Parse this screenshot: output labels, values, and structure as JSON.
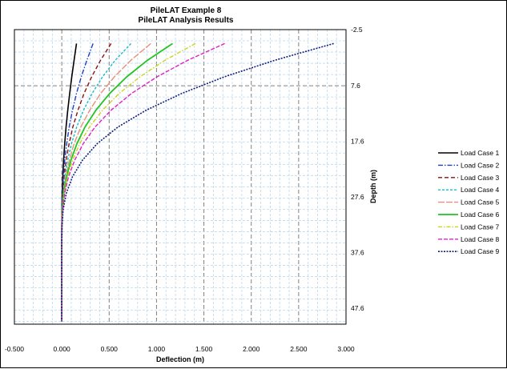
{
  "chart_data": {
    "type": "line",
    "title": "PileLAT Example 8",
    "subtitle": "PileLAT Analysis Results",
    "xlabel": "Deflection (m)",
    "ylabel": "Depth (m)",
    "xlim": [
      -0.5,
      3.0
    ],
    "ylim": [
      -2.5,
      50.5
    ],
    "y_inverted": true,
    "y_axis_side": "right",
    "x_ticks": [
      "-0.500",
      "0.000",
      "0.500",
      "1.000",
      "1.500",
      "2.000",
      "2.500",
      "3.000"
    ],
    "x_tick_values": [
      -0.5,
      0,
      0.5,
      1.0,
      1.5,
      2.0,
      2.5,
      3.0
    ],
    "y_ticks": [
      "-2.5",
      "7.6",
      "17.6",
      "27.6",
      "37.6",
      "47.6"
    ],
    "y_tick_values": [
      -2.5,
      7.6,
      17.6,
      27.6,
      37.6,
      47.6
    ],
    "grid": true,
    "legend_position": "right",
    "depth": [
      0,
      3,
      6,
      9,
      12,
      15,
      18,
      21,
      24,
      27,
      30,
      33,
      36,
      40,
      44,
      47,
      50
    ],
    "series": [
      {
        "name": "Load Case 1",
        "color": "#000000",
        "dash": "solid",
        "width": 1.6,
        "values": [
          0.155,
          0.13,
          0.105,
          0.083,
          0.063,
          0.045,
          0.031,
          0.019,
          0.01,
          0.004,
          0.001,
          0.0,
          0.0,
          0.0,
          0.0,
          0.0,
          0.0
        ]
      },
      {
        "name": "Load Case 2",
        "color": "#1f3fbf",
        "dash": "6 2 1.5 2",
        "width": 1.4,
        "values": [
          0.33,
          0.265,
          0.205,
          0.155,
          0.113,
          0.078,
          0.052,
          0.031,
          0.016,
          0.007,
          0.002,
          0.0,
          0.0,
          0.0,
          0.0,
          0.0,
          0.0
        ]
      },
      {
        "name": "Load Case 3",
        "color": "#8b1010",
        "dash": "5 3",
        "width": 1.4,
        "values": [
          0.52,
          0.41,
          0.315,
          0.235,
          0.17,
          0.117,
          0.077,
          0.046,
          0.024,
          0.011,
          0.003,
          0.001,
          0.0,
          0.0,
          0.0,
          0.0,
          0.0
        ]
      },
      {
        "name": "Load Case 4",
        "color": "#17bcc4",
        "dash": "3 2",
        "width": 1.4,
        "values": [
          0.73,
          0.565,
          0.43,
          0.32,
          0.23,
          0.158,
          0.103,
          0.062,
          0.033,
          0.014,
          0.004,
          0.001,
          0.0,
          0.0,
          0.0,
          0.0,
          0.0
        ]
      },
      {
        "name": "Load Case 5",
        "color": "#e8907a",
        "dash": "8 2",
        "width": 1.4,
        "values": [
          0.94,
          0.73,
          0.555,
          0.41,
          0.295,
          0.202,
          0.131,
          0.079,
          0.042,
          0.018,
          0.005,
          0.001,
          0.0,
          0.0,
          0.0,
          0.0,
          0.0
        ]
      },
      {
        "name": "Load Case 6",
        "color": "#22c322",
        "dash": "solid",
        "width": 1.8,
        "values": [
          1.17,
          0.905,
          0.685,
          0.505,
          0.36,
          0.246,
          0.16,
          0.096,
          0.051,
          0.022,
          0.006,
          0.001,
          0.0,
          0.0,
          0.0,
          0.0,
          0.0
        ]
      },
      {
        "name": "Load Case 7",
        "color": "#c9d41c",
        "dash": "5 2 1.5 2",
        "width": 1.4,
        "values": [
          1.41,
          1.09,
          0.825,
          0.605,
          0.43,
          0.293,
          0.19,
          0.114,
          0.06,
          0.026,
          0.007,
          0.001,
          0.0,
          0.0,
          0.0,
          0.0,
          0.0
        ]
      },
      {
        "name": "Load Case 8",
        "color": "#e01fc7",
        "dash": "5 2",
        "width": 1.4,
        "values": [
          1.72,
          1.33,
          1.005,
          0.735,
          0.52,
          0.352,
          0.227,
          0.136,
          0.071,
          0.03,
          0.008,
          0.001,
          0.0,
          0.0,
          0.0,
          0.0,
          0.0
        ]
      },
      {
        "name": "Load Case 9",
        "color": "#10207a",
        "dash": "2 1.5",
        "width": 1.6,
        "values": [
          2.87,
          2.25,
          1.715,
          1.265,
          0.89,
          0.595,
          0.375,
          0.218,
          0.112,
          0.047,
          0.013,
          0.002,
          0.0,
          0.0,
          0.0,
          0.0,
          0.0
        ]
      }
    ]
  }
}
